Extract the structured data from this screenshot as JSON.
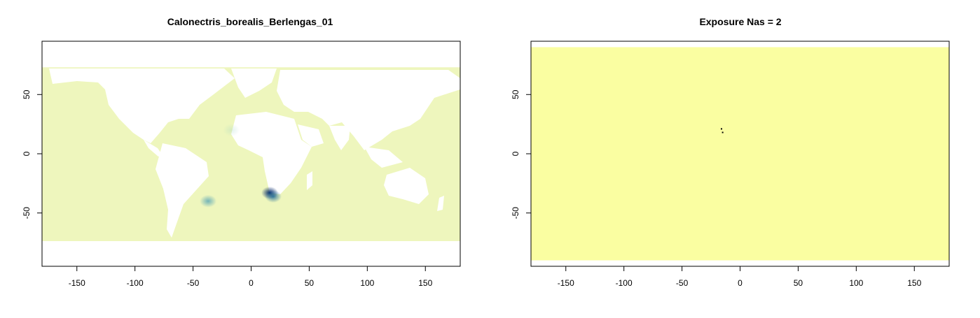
{
  "chart_data": [
    {
      "type": "heatmap",
      "title": "Calonectris_borealis_Berlengas_01",
      "xlabel": "",
      "ylabel": "",
      "xlim": [
        -180,
        180
      ],
      "ylim": [
        -95,
        95
      ],
      "x_ticks": [
        -150,
        -100,
        -50,
        0,
        50,
        100,
        150
      ],
      "y_ticks": [
        -50,
        0,
        50
      ],
      "ocean_color": "#eef6bd",
      "land_color": "#ffffff",
      "data_extent_lat": [
        -76,
        73
      ],
      "hotspots": [
        {
          "lon": 16,
          "lat": -33,
          "intensity": 1.0,
          "color": "#062a6a"
        },
        {
          "lon": 19,
          "lat": -36,
          "intensity": 0.85,
          "color": "#1e6a9a"
        },
        {
          "lon": -37,
          "lat": -40,
          "intensity": 0.7,
          "color": "#3f98b5"
        },
        {
          "lon": -17,
          "lat": 20,
          "intensity": 0.3,
          "color": "#9fd3c0"
        }
      ]
    },
    {
      "type": "heatmap",
      "title": "Exposure Nas = 2",
      "xlabel": "",
      "ylabel": "",
      "xlim": [
        -180,
        180
      ],
      "ylim": [
        -95,
        95
      ],
      "x_ticks": [
        -150,
        -100,
        -50,
        0,
        50,
        100,
        150
      ],
      "y_ticks": [
        -50,
        0,
        50
      ],
      "fill_color": "#fafea1",
      "data_extent_lat": [
        -90,
        90
      ],
      "na_points": [
        {
          "lon": -16,
          "lat": 21
        },
        {
          "lon": -15,
          "lat": 18
        }
      ]
    }
  ]
}
